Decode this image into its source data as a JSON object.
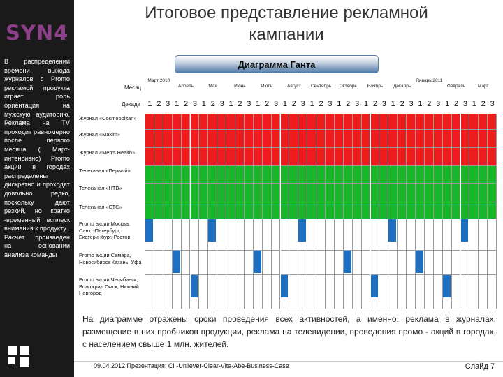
{
  "sidebar": {
    "logo": "SYN4",
    "text": "В распределении времени выхода журналов с Promo рекламой продукта играет роль ориентация на мужскую аудиторию. Реклама на TV проходит равномерно после первого месяца ( Март-интенсивно) Promo акции в городах распределены дискретно и проходят довольно редко, поскольку дают резкий, но кратко -временный всплеск внимания к продукту . Расчет произведен на основании анализа команды"
  },
  "title": "Итоговое представление рекламной кампании",
  "gantt": {
    "banner": "Диаграмма Ганта",
    "month_label": "Месяц",
    "decade_label": "Декада",
    "months": [
      "Март 2010",
      "Апрель",
      "Май",
      "Июнь",
      "Июль",
      "Август",
      "Сентябрь",
      "Октябрь",
      "Ноябрь",
      "Декабрь",
      "Январь 2011",
      "Февраль",
      "Март"
    ],
    "decades": [
      "1",
      "2",
      "3"
    ],
    "rows": [
      {
        "label": "Журнал «Cosmopolitan»",
        "color": "#ee1c1c",
        "active": [
          0,
          1,
          2,
          3,
          4,
          5,
          6,
          7,
          8,
          9,
          10,
          11,
          12,
          13,
          14,
          15,
          16,
          17,
          18,
          19,
          20,
          21,
          22,
          23,
          24,
          25,
          26,
          27,
          28,
          29,
          30,
          31,
          32,
          33,
          34,
          35,
          36,
          37,
          38
        ]
      },
      {
        "label": "Журнал «Maxim»",
        "color": "#ee1c1c",
        "active": [
          0,
          1,
          2,
          3,
          4,
          5,
          6,
          7,
          8,
          9,
          10,
          11,
          12,
          13,
          14,
          15,
          16,
          17,
          18,
          19,
          20,
          21,
          22,
          23,
          24,
          25,
          26,
          27,
          28,
          29,
          30,
          31,
          32,
          33,
          34,
          35,
          36,
          37,
          38
        ]
      },
      {
        "label": "Журнал «Men's Health»",
        "color": "#ee1c1c",
        "active": [
          0,
          1,
          2,
          3,
          4,
          5,
          6,
          7,
          8,
          9,
          10,
          11,
          12,
          13,
          14,
          15,
          16,
          17,
          18,
          19,
          20,
          21,
          22,
          23,
          24,
          25,
          26,
          27,
          28,
          29,
          30,
          31,
          32,
          33,
          34,
          35,
          36,
          37,
          38
        ]
      },
      {
        "label": "Телеканал «Первый»",
        "color": "#19b52b",
        "active": [
          0,
          1,
          2,
          3,
          4,
          5,
          6,
          7,
          8,
          9,
          10,
          11,
          12,
          13,
          14,
          15,
          16,
          17,
          18,
          19,
          20,
          21,
          22,
          23,
          24,
          25,
          26,
          27,
          28,
          29,
          30,
          31,
          32,
          33,
          34,
          35,
          36,
          37,
          38
        ]
      },
      {
        "label": "Телеканал «НТВ»",
        "color": "#19b52b",
        "active": [
          0,
          1,
          2,
          3,
          4,
          5,
          6,
          7,
          8,
          9,
          10,
          11,
          12,
          13,
          14,
          15,
          16,
          17,
          18,
          19,
          20,
          21,
          22,
          23,
          24,
          25,
          26,
          27,
          28,
          29,
          30,
          31,
          32,
          33,
          34,
          35,
          36,
          37,
          38
        ]
      },
      {
        "label": "Телеканал «СТС»",
        "color": "#19b52b",
        "active": [
          0,
          1,
          2,
          3,
          4,
          5,
          6,
          7,
          8,
          9,
          10,
          11,
          12,
          13,
          14,
          15,
          16,
          17,
          18,
          19,
          20,
          21,
          22,
          23,
          24,
          25,
          26,
          27,
          28,
          29,
          30,
          31,
          32,
          33,
          34,
          35,
          36,
          37,
          38
        ]
      },
      {
        "label": "Promo акции Москва, Санкт-Петербург, Екатеринбург, Ростов",
        "color": "#1f6fc0",
        "active": [
          0,
          7,
          17,
          27,
          35
        ]
      },
      {
        "label": "Promo акции Самара, Новосибирск Казань, Уфа",
        "color": "#1f6fc0",
        "active": [
          3,
          12,
          22,
          30
        ]
      },
      {
        "label": "Promo акции Челябинск, Волгоград Омск, Нижний Новгород",
        "color": "#1f6fc0",
        "active": [
          5,
          15,
          25,
          33
        ]
      }
    ]
  },
  "caption": "На диаграмме отражены сроки проведения всех активностей, а именно: реклама в журналах, размещение в них пробников продукции, реклама на телевидении, проведения промо - акций в городах, с населением свыше 1 млн. жителей.",
  "footer": {
    "left": "09.04.2012 Презентация: CI -Unilever-Clear-Vita-Abe-Business-Case",
    "right": "Слайд 7"
  }
}
